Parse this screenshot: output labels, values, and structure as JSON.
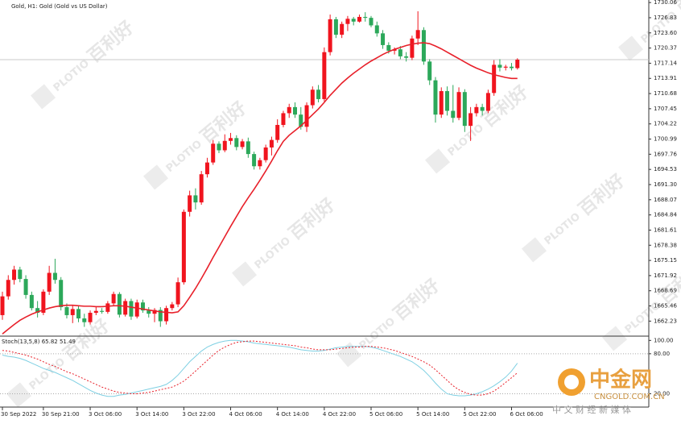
{
  "chart_data": [
    {
      "type": "candlestick",
      "title": "Gold, H1: Gold (Gold vs US Dollar)",
      "watermark": [
        "PLOTIO",
        "百利好"
      ],
      "logo": {
        "name": "中金网",
        "url": "CNGOLD.COM.CN",
        "slogan": "中 文 财 经 新 媒 体"
      },
      "categories": [
        "30 Sep 2022",
        null,
        null,
        null,
        null,
        null,
        null,
        "30 Sep 21:00",
        null,
        null,
        null,
        null,
        null,
        null,
        null,
        "3 Oct 06:00",
        null,
        null,
        null,
        null,
        null,
        null,
        null,
        "3 Oct 14:00",
        null,
        null,
        null,
        null,
        null,
        null,
        null,
        "3 Oct 22:00",
        null,
        null,
        null,
        null,
        null,
        null,
        null,
        "4 Oct 06:00",
        null,
        null,
        null,
        null,
        null,
        null,
        null,
        "4 Oct 14:00",
        null,
        null,
        null,
        null,
        null,
        null,
        null,
        "4 Oct 22:00",
        null,
        null,
        null,
        null,
        null,
        null,
        null,
        "5 Oct 06:00",
        null,
        null,
        null,
        null,
        null,
        null,
        null,
        "5 Oct 14:00",
        null,
        null,
        null,
        null,
        null,
        null,
        null,
        "5 Oct 22:00",
        null,
        null,
        null,
        null,
        null,
        null,
        null,
        "6 Oct 06:00",
        null
      ],
      "open": [
        1663.5,
        1667.5,
        1671.0,
        1673.2,
        1671.2,
        1667.8,
        1665.0,
        1664.0,
        1668.5,
        1672.5,
        1671.0,
        1665.2,
        1663.5,
        1664.8,
        1662.8,
        1662.0,
        1664.0,
        1664.4,
        1664.2,
        1666.0,
        1668.0,
        1663.6,
        1666.5,
        1663.2,
        1666.2,
        1664.5,
        1663.8,
        1664.6,
        1662.2,
        1665.0,
        1665.8,
        1670.5,
        1685.5,
        1689.0,
        1687.5,
        1693.5,
        1696.0,
        1700.0,
        1698.6,
        1700.6,
        1701.2,
        1699.3,
        1700.5,
        1697.8,
        1695.2,
        1696.5,
        1699.2,
        1700.8,
        1704.0,
        1706.5,
        1707.8,
        1706.2,
        1703.6,
        1708.2,
        1711.5,
        1709.5,
        1719.5,
        1726.5,
        1723.2,
        1725.5,
        1726.6,
        1726.0,
        1727.0,
        1726.8,
        1725.2,
        1723.5,
        1721.0,
        1719.8,
        1720.1,
        1718.6,
        1718.3,
        1722.4,
        1724.2,
        1717.5,
        1713.5,
        1706.2,
        1711.2,
        1707.0,
        1705.5,
        1711.0,
        1703.8,
        1706.5,
        1707.8,
        1707.0,
        1710.8,
        1716.8,
        1716.2,
        1716.4,
        1716.1
      ],
      "high": [
        1668.5,
        1672.0,
        1674.0,
        1673.8,
        1672.0,
        1668.5,
        1666.5,
        1669.0,
        1674.0,
        1675.5,
        1671.6,
        1666.0,
        1665.5,
        1665.4,
        1663.8,
        1664.5,
        1665.2,
        1665.0,
        1666.5,
        1668.5,
        1668.4,
        1667.0,
        1667.0,
        1666.8,
        1666.8,
        1665.2,
        1665.0,
        1665.2,
        1665.5,
        1666.3,
        1671.5,
        1686.0,
        1690.0,
        1690.5,
        1694.2,
        1697.0,
        1700.8,
        1700.5,
        1702.0,
        1702.3,
        1701.8,
        1701.0,
        1701.3,
        1698.3,
        1697.0,
        1699.8,
        1701.5,
        1705.2,
        1707.0,
        1708.5,
        1708.8,
        1707.8,
        1708.8,
        1712.2,
        1712.5,
        1720.5,
        1727.5,
        1727.0,
        1726.0,
        1727.2,
        1727.0,
        1727.5,
        1728.0,
        1727.2,
        1726.0,
        1724.2,
        1721.6,
        1720.5,
        1720.8,
        1719.5,
        1723.0,
        1728.2,
        1724.8,
        1718.0,
        1714.2,
        1712.0,
        1712.2,
        1712.5,
        1712.0,
        1711.6,
        1707.8,
        1708.5,
        1708.5,
        1711.5,
        1717.8,
        1718.0,
        1716.8,
        1717.2,
        1718.2
      ],
      "low": [
        1662.5,
        1666.8,
        1670.0,
        1670.5,
        1667.0,
        1664.5,
        1663.0,
        1663.5,
        1667.8,
        1670.2,
        1664.5,
        1662.8,
        1661.8,
        1662.0,
        1661.0,
        1661.5,
        1663.5,
        1663.8,
        1663.8,
        1665.5,
        1663.0,
        1663.2,
        1662.5,
        1662.8,
        1664.0,
        1663.0,
        1662.0,
        1661.0,
        1661.5,
        1664.5,
        1665.2,
        1670.0,
        1684.5,
        1686.0,
        1687.0,
        1692.8,
        1695.5,
        1698.0,
        1698.2,
        1699.8,
        1698.6,
        1698.8,
        1697.0,
        1694.5,
        1694.5,
        1696.0,
        1697.5,
        1700.2,
        1703.5,
        1705.5,
        1705.5,
        1703.0,
        1702.5,
        1707.5,
        1708.8,
        1709.0,
        1718.8,
        1722.5,
        1722.5,
        1724.0,
        1725.2,
        1725.8,
        1726.0,
        1724.8,
        1722.8,
        1720.2,
        1719.2,
        1719.0,
        1718.0,
        1717.5,
        1717.8,
        1721.0,
        1716.8,
        1712.5,
        1704.5,
        1705.5,
        1706.0,
        1704.5,
        1705.0,
        1702.5,
        1700.6,
        1705.8,
        1706.0,
        1706.5,
        1710.2,
        1715.4,
        1715.6,
        1715.6,
        1715.8
      ],
      "close": [
        1667.5,
        1671.0,
        1673.2,
        1671.2,
        1667.8,
        1665.0,
        1664.0,
        1668.5,
        1672.5,
        1671.0,
        1665.2,
        1663.5,
        1664.8,
        1662.8,
        1662.0,
        1664.0,
        1664.4,
        1664.2,
        1666.0,
        1668.0,
        1663.6,
        1666.5,
        1663.2,
        1666.2,
        1664.5,
        1663.8,
        1664.6,
        1662.2,
        1665.0,
        1665.8,
        1670.5,
        1685.5,
        1689.0,
        1687.5,
        1693.5,
        1696.0,
        1700.0,
        1698.6,
        1700.6,
        1701.2,
        1699.3,
        1700.5,
        1697.8,
        1695.2,
        1696.5,
        1699.2,
        1700.8,
        1704.0,
        1706.5,
        1707.8,
        1706.2,
        1703.6,
        1708.2,
        1711.5,
        1709.5,
        1719.5,
        1726.5,
        1723.2,
        1725.5,
        1726.6,
        1726.0,
        1727.0,
        1726.8,
        1725.2,
        1723.5,
        1721.0,
        1719.8,
        1720.1,
        1718.6,
        1718.3,
        1722.4,
        1724.2,
        1717.5,
        1713.5,
        1706.2,
        1711.2,
        1707.0,
        1705.5,
        1711.0,
        1703.8,
        1706.5,
        1707.8,
        1707.0,
        1710.8,
        1716.8,
        1716.2,
        1716.4,
        1716.1,
        1717.9
      ],
      "up_color": "#f0141e",
      "down_color": "#2ca85a",
      "overlays": [
        {
          "color": "#e8202a",
          "values": [
            1659.5,
            1660.5,
            1661.5,
            1662.4,
            1663.1,
            1663.7,
            1664.2,
            1664.6,
            1665.0,
            1665.3,
            1665.5,
            1665.6,
            1665.6,
            1665.5,
            1665.4,
            1665.4,
            1665.3,
            1665.3,
            1665.4,
            1665.5,
            1665.5,
            1665.4,
            1665.2,
            1665.0,
            1664.8,
            1664.6,
            1664.4,
            1664.2,
            1664.1,
            1664.0,
            1664.2,
            1665.5,
            1667.3,
            1669.2,
            1671.3,
            1673.5,
            1675.8,
            1678.0,
            1680.2,
            1682.4,
            1684.5,
            1686.6,
            1688.5,
            1690.3,
            1692.2,
            1694.2,
            1696.3,
            1698.5,
            1700.5,
            1701.8,
            1702.8,
            1703.8,
            1705.0,
            1706.2,
            1707.4,
            1708.8,
            1710.3,
            1711.6,
            1712.9,
            1714.0,
            1715.0,
            1715.9,
            1716.8,
            1717.6,
            1718.3,
            1719.0,
            1719.6,
            1720.1,
            1720.5,
            1720.9,
            1721.2,
            1721.4,
            1721.5,
            1721.3,
            1720.8,
            1720.2,
            1719.5,
            1718.8,
            1718.1,
            1717.4,
            1716.7,
            1716.1,
            1715.6,
            1715.1,
            1714.7,
            1714.4,
            1714.1,
            1713.9,
            1713.9
          ]
        }
      ],
      "price_line": 1717.9,
      "ylim": [
        1659.2,
        1730.6
      ],
      "yticks": [
        1662.23,
        1665.46,
        1668.69,
        1671.92,
        1675.15,
        1678.38,
        1681.61,
        1684.84,
        1688.07,
        {
          "value": 1691.3,
          "label": "1691.30"
        },
        1694.53,
        1697.76,
        1700.99,
        1704.22,
        1707.45,
        1710.68,
        1713.91,
        1717.14,
        1720.37,
        {
          "value": 1723.6,
          "label": "1723.60"
        },
        1726.83,
        1730.06
      ]
    },
    {
      "type": "line",
      "title": "Stoch(13,5,8) 65.82 51.49",
      "series": [
        {
          "color": "#7fd0e3",
          "values": [
            78,
            76,
            75,
            73,
            70,
            66,
            62,
            58,
            55,
            52,
            48,
            44,
            40,
            35,
            30,
            25,
            21,
            18,
            16,
            16,
            18,
            19,
            21,
            23,
            25,
            27,
            29,
            31,
            34,
            40,
            48,
            58,
            68,
            76,
            84,
            90,
            94,
            97,
            99,
            100,
            100,
            99,
            98,
            96,
            95,
            94,
            93,
            92,
            91,
            90,
            88,
            86,
            85,
            84,
            84,
            85,
            87,
            89,
            90,
            91,
            91,
            91,
            91,
            90,
            88,
            85,
            82,
            79,
            76,
            72,
            68,
            62,
            55,
            46,
            36,
            27,
            20,
            18,
            17,
            17,
            18,
            20,
            23,
            27,
            32,
            38,
            45,
            54,
            65.82
          ]
        },
        {
          "color": "#e8202a",
          "dashed": true,
          "values": [
            85,
            84,
            82,
            80,
            78,
            75,
            72,
            68,
            64,
            61,
            57,
            53,
            50,
            46,
            42,
            38,
            34,
            30,
            27,
            24,
            22,
            21,
            20,
            20,
            21,
            22,
            24,
            26,
            28,
            30,
            34,
            39,
            46,
            54,
            62,
            70,
            78,
            85,
            90,
            94,
            97,
            98,
            99,
            99,
            98,
            97,
            96,
            95,
            94,
            93,
            92,
            90,
            89,
            87,
            86,
            86,
            86,
            87,
            88,
            89,
            90,
            90,
            91,
            91,
            90,
            89,
            87,
            85,
            82,
            79,
            76,
            72,
            68,
            63,
            56,
            48,
            40,
            32,
            26,
            22,
            19,
            18,
            18,
            20,
            24,
            30,
            37,
            44,
            51.49
          ]
        }
      ],
      "levels": [
        80,
        20
      ],
      "ylim": [
        0,
        104
      ],
      "yticks": [
        {
          "value": 100,
          "label": "100.00"
        },
        {
          "value": 80,
          "label": "80.00"
        },
        {
          "value": 20,
          "label": "20.00"
        }
      ]
    }
  ]
}
